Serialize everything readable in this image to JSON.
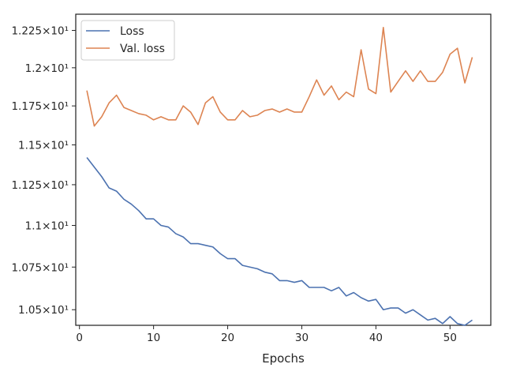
{
  "chart_data": {
    "type": "line",
    "title": "",
    "xlabel": "Epochs",
    "ylabel": "",
    "xlim": [
      -0.5,
      55.5
    ],
    "ylim": [
      10.41,
      12.36
    ],
    "yscale": "log",
    "grid": false,
    "legend_placement": "top-left",
    "xticks": [
      0,
      10,
      20,
      30,
      40,
      50
    ],
    "xtick_labels": [
      "0",
      "10",
      "20",
      "30",
      "40",
      "50"
    ],
    "yticks": [
      10.5,
      10.75,
      11.0,
      11.25,
      11.5,
      11.75,
      12.0,
      12.25
    ],
    "ytick_labels": [
      "1.05×10¹",
      "1.075×10¹",
      "1.1×10¹",
      "1.125×10¹",
      "1.15×10¹",
      "1.175×10¹",
      "1.2×10¹",
      "1.225×10¹"
    ],
    "x": [
      1,
      2,
      3,
      4,
      5,
      6,
      7,
      8,
      9,
      10,
      11,
      12,
      13,
      14,
      15,
      16,
      17,
      18,
      19,
      20,
      21,
      22,
      23,
      24,
      25,
      26,
      27,
      28,
      29,
      30,
      31,
      32,
      33,
      34,
      35,
      36,
      37,
      38,
      39,
      40,
      41,
      42,
      43,
      44,
      45,
      46,
      47,
      48,
      49,
      50,
      51,
      52,
      53
    ],
    "series": [
      {
        "name": "Loss",
        "color": "#4c72b0",
        "values": [
          11.42,
          11.36,
          11.3,
          11.23,
          11.21,
          11.16,
          11.13,
          11.09,
          11.04,
          11.04,
          11.0,
          10.99,
          10.95,
          10.93,
          10.89,
          10.89,
          10.88,
          10.87,
          10.83,
          10.8,
          10.8,
          10.76,
          10.75,
          10.74,
          10.72,
          10.71,
          10.67,
          10.67,
          10.66,
          10.67,
          10.63,
          10.63,
          10.63,
          10.61,
          10.63,
          10.58,
          10.6,
          10.57,
          10.55,
          10.56,
          10.5,
          10.51,
          10.51,
          10.48,
          10.5,
          10.47,
          10.44,
          10.45,
          10.42,
          10.46,
          10.42,
          10.41,
          10.44
        ]
      },
      {
        "name": "Val. loss",
        "color": "#dd8452",
        "values": [
          11.85,
          11.62,
          11.68,
          11.77,
          11.82,
          11.74,
          11.72,
          11.7,
          11.69,
          11.66,
          11.68,
          11.66,
          11.66,
          11.75,
          11.71,
          11.63,
          11.77,
          11.81,
          11.71,
          11.66,
          11.66,
          11.72,
          11.68,
          11.69,
          11.72,
          11.73,
          11.71,
          11.73,
          11.71,
          11.71,
          11.81,
          11.92,
          11.82,
          11.88,
          11.79,
          11.84,
          11.81,
          12.12,
          11.86,
          11.83,
          12.27,
          11.84,
          11.91,
          11.98,
          11.91,
          11.98,
          11.91,
          11.91,
          11.97,
          12.09,
          12.13,
          11.9,
          12.07
        ]
      }
    ]
  }
}
